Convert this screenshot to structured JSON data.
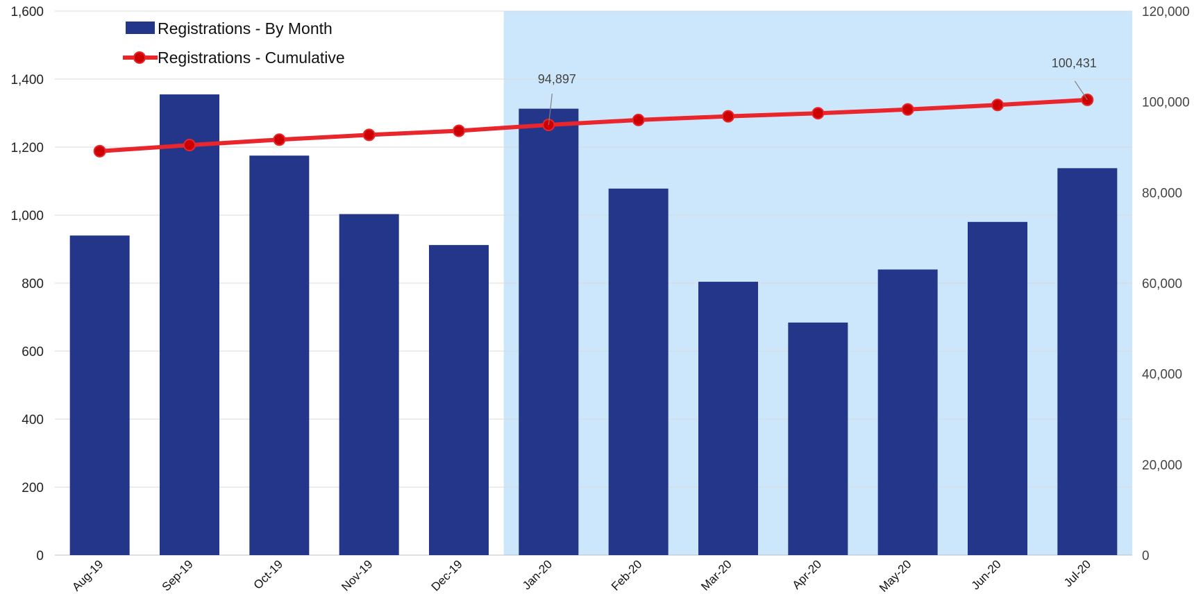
{
  "chart_data": {
    "type": "bar",
    "title": "",
    "xlabel": "",
    "ylabel": "",
    "y2label": "",
    "categories": [
      "Aug-19",
      "Sep-19",
      "Oct-19",
      "Nov-19",
      "Dec-19",
      "Jan-20",
      "Feb-20",
      "Mar-20",
      "Apr-20",
      "May-20",
      "Jun-20",
      "Jul-20"
    ],
    "series": [
      {
        "name": "Registrations - By Month",
        "type": "bar",
        "axis": "left",
        "color": "#23368A",
        "values": [
          940,
          1355,
          1175,
          1003,
          912,
          1313,
          1078,
          804,
          684,
          840,
          980,
          1138
        ]
      },
      {
        "name": "Registrations - Cumulative",
        "type": "line",
        "axis": "right",
        "color": "#E8262C",
        "marker_color": "#CC0000",
        "values": [
          89100,
          90450,
          91650,
          92700,
          93600,
          94897,
          95980,
          96790,
          97470,
          98300,
          99290,
          100431
        ]
      }
    ],
    "ylim": [
      0,
      1600
    ],
    "y_ticks": [
      0,
      200,
      400,
      600,
      800,
      1000,
      1200,
      1400,
      1600
    ],
    "y_tick_labels": [
      "0",
      "200",
      "400",
      "600",
      "800",
      "1,000",
      "1,200",
      "1,400",
      "1,600"
    ],
    "y2lim": [
      0,
      120000
    ],
    "y2_ticks": [
      0,
      20000,
      40000,
      60000,
      80000,
      100000,
      120000
    ],
    "y2_tick_labels": [
      "0",
      "20,000",
      "40,000",
      "60,000",
      "80,000",
      "100,000",
      "120,000"
    ],
    "data_labels": [
      {
        "series": "Registrations - Cumulative",
        "category": "Jan-20",
        "text": "94,897"
      },
      {
        "series": "Registrations - Cumulative",
        "category": "Jul-20",
        "text": "100,431"
      }
    ],
    "highlight_region": {
      "from": "Jan-20",
      "to": "Jul-20",
      "color": "#CCE7FB"
    },
    "grid": true,
    "legend_position": "top-left"
  }
}
